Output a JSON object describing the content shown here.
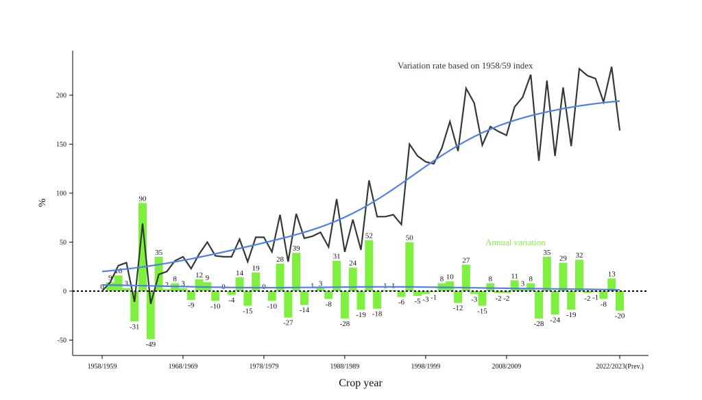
{
  "chart_data": {
    "type": "bar+line",
    "xlabel": "Crop year",
    "ylabel": "%",
    "ylim": [
      -55,
      245
    ],
    "yticks": [
      -50,
      0,
      50,
      100,
      150,
      200
    ],
    "x_start": 1958,
    "x_end": 2022,
    "xtick_labels": [
      {
        "x": 1958,
        "label": "1958/1959"
      },
      {
        "x": 1968,
        "label": "1968/1969"
      },
      {
        "x": 1978,
        "label": "1978/1979"
      },
      {
        "x": 1988,
        "label": "1988/1989"
      },
      {
        "x": 1998,
        "label": "1998/1999"
      },
      {
        "x": 2008,
        "label": "2008/2009"
      },
      {
        "x": 2022,
        "label": "2022/2023(Prev.)"
      }
    ],
    "annual_variation": {
      "name": "Annual variation",
      "color": "#80f040",
      "values": [
        0,
        9,
        16,
        3,
        -31,
        90,
        -49,
        35,
        2,
        8,
        3,
        -9,
        12,
        9,
        -10,
        0,
        -4,
        14,
        -15,
        19,
        0,
        -10,
        28,
        -27,
        39,
        -14,
        1,
        3,
        -8,
        31,
        -28,
        24,
        -19,
        52,
        -18,
        1,
        1,
        -6,
        50,
        -5,
        -3,
        -1,
        8,
        10,
        -12,
        27,
        -3,
        -15,
        8,
        -2,
        -2,
        11,
        3,
        8,
        -28,
        35,
        -24,
        29,
        -19,
        32,
        -2,
        -1,
        -8,
        13,
        -20
      ]
    },
    "index_series": {
      "name": "Variation rate based on 1958/59 index",
      "color": "#2f3b30",
      "values": [
        0,
        9,
        26,
        29,
        -11,
        69,
        -13,
        17,
        20,
        31,
        35,
        23,
        38,
        50,
        36,
        35,
        35,
        53,
        30,
        55,
        55,
        40,
        78,
        30,
        79,
        54,
        56,
        60,
        45,
        94,
        40,
        73,
        42,
        113,
        76,
        76,
        78,
        68,
        150,
        138,
        132,
        130,
        146,
        173,
        143,
        207,
        192,
        149,
        168,
        163,
        159,
        188,
        198,
        221,
        133,
        215,
        138,
        208,
        148,
        227,
        220,
        217,
        193,
        229,
        164
      ]
    },
    "trend": {
      "color": "#4f7fe8"
    },
    "baseline": {
      "value": 0,
      "style": "dotted"
    }
  },
  "annotations": {
    "index_label": "Variation rate based on 1958/59 index",
    "annual_label": "Annual variation"
  },
  "axis": {
    "xlabel": "Crop year",
    "ylabel": "%"
  }
}
